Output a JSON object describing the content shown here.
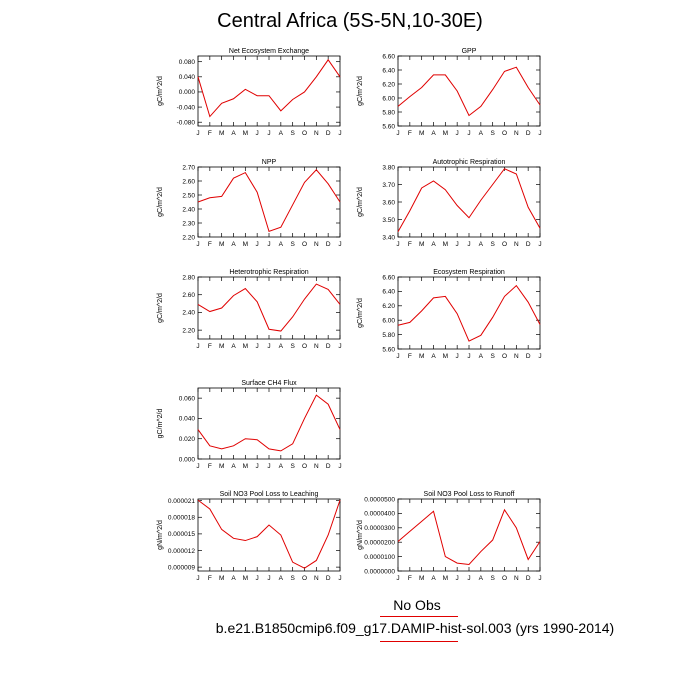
{
  "title": "Central Africa (5S-5N,10-30E)",
  "months": [
    "J",
    "F",
    "M",
    "A",
    "M",
    "J",
    "J",
    "A",
    "S",
    "O",
    "N",
    "D",
    "J"
  ],
  "legend": {
    "obs_label": "No Obs",
    "sim_label": "b.e21.B1850cmip6.f09_g17.DAMIP-hist-sol.003 (yrs 1990-2014)",
    "line_color": "#e00000"
  },
  "chart_data": [
    {
      "type": "line",
      "title": "Net Ecosystem Exchange",
      "ylabel": "gC/m^2/d",
      "ylim": [
        -0.09,
        0.095
      ],
      "yticks": [
        -0.08,
        -0.04,
        0,
        0.04,
        0.08
      ],
      "yticklabels": [
        "-0.080",
        "-0.040",
        "0.000",
        "0.040",
        "0.080"
      ],
      "x": [
        "J",
        "F",
        "M",
        "A",
        "M",
        "J",
        "J",
        "A",
        "S",
        "O",
        "N",
        "D",
        "J"
      ],
      "values": [
        0.04,
        -0.065,
        -0.03,
        -0.018,
        0.007,
        -0.01,
        -0.01,
        -0.05,
        -0.02,
        0.0,
        0.04,
        0.085,
        0.04
      ]
    },
    {
      "type": "line",
      "title": "GPP",
      "ylabel": "gC/m^2/d",
      "ylim": [
        5.6,
        6.6
      ],
      "yticks": [
        5.6,
        5.8,
        6.0,
        6.2,
        6.4,
        6.6
      ],
      "yticklabels": [
        "5.60",
        "5.80",
        "6.00",
        "6.20",
        "6.40",
        "6.60"
      ],
      "x": [
        "J",
        "F",
        "M",
        "A",
        "M",
        "J",
        "J",
        "A",
        "S",
        "O",
        "N",
        "D",
        "J"
      ],
      "values": [
        5.88,
        6.02,
        6.15,
        6.33,
        6.33,
        6.1,
        5.75,
        5.88,
        6.12,
        6.38,
        6.44,
        6.15,
        5.9
      ]
    },
    {
      "type": "line",
      "title": "NPP",
      "ylabel": "gC/m^2/d",
      "ylim": [
        2.2,
        2.7
      ],
      "yticks": [
        2.2,
        2.3,
        2.4,
        2.5,
        2.6,
        2.7
      ],
      "yticklabels": [
        "2.20",
        "2.30",
        "2.40",
        "2.50",
        "2.60",
        "2.70"
      ],
      "x": [
        "J",
        "F",
        "M",
        "A",
        "M",
        "J",
        "J",
        "A",
        "S",
        "O",
        "N",
        "D",
        "J"
      ],
      "values": [
        2.45,
        2.48,
        2.49,
        2.62,
        2.66,
        2.52,
        2.24,
        2.27,
        2.43,
        2.59,
        2.68,
        2.58,
        2.45
      ]
    },
    {
      "type": "line",
      "title": "Autotrophic Respiration",
      "ylabel": "gC/m^2/d",
      "ylim": [
        3.4,
        3.8
      ],
      "yticks": [
        3.4,
        3.5,
        3.6,
        3.7,
        3.8
      ],
      "yticklabels": [
        "3.40",
        "3.50",
        "3.60",
        "3.70",
        "3.80"
      ],
      "x": [
        "J",
        "F",
        "M",
        "A",
        "M",
        "J",
        "J",
        "A",
        "S",
        "O",
        "N",
        "D",
        "J"
      ],
      "values": [
        3.43,
        3.55,
        3.68,
        3.72,
        3.67,
        3.58,
        3.51,
        3.61,
        3.7,
        3.79,
        3.76,
        3.57,
        3.45
      ]
    },
    {
      "type": "line",
      "title": "Heterotrophic Respiration",
      "ylabel": "gC/m^2/d",
      "ylim": [
        2.1,
        2.8
      ],
      "yticks": [
        2.2,
        2.4,
        2.6,
        2.8
      ],
      "yticklabels": [
        "2.20",
        "2.40",
        "2.60",
        "2.80"
      ],
      "x": [
        "J",
        "F",
        "M",
        "A",
        "M",
        "J",
        "J",
        "A",
        "S",
        "O",
        "N",
        "D",
        "J"
      ],
      "values": [
        2.49,
        2.41,
        2.45,
        2.59,
        2.67,
        2.52,
        2.21,
        2.19,
        2.35,
        2.55,
        2.72,
        2.66,
        2.49
      ]
    },
    {
      "type": "line",
      "title": "Ecosystem Respiration",
      "ylabel": "gC/m^2/d",
      "ylim": [
        5.6,
        6.6
      ],
      "yticks": [
        5.6,
        5.8,
        6.0,
        6.2,
        6.4,
        6.6
      ],
      "yticklabels": [
        "5.60",
        "5.80",
        "6.00",
        "6.20",
        "6.40",
        "6.60"
      ],
      "x": [
        "J",
        "F",
        "M",
        "A",
        "M",
        "J",
        "J",
        "A",
        "S",
        "O",
        "N",
        "D",
        "J"
      ],
      "values": [
        5.93,
        5.97,
        6.13,
        6.31,
        6.33,
        6.09,
        5.71,
        5.79,
        6.04,
        6.33,
        6.48,
        6.25,
        5.94
      ]
    },
    {
      "type": "line",
      "title": "Surface CH4 Flux",
      "ylabel": "gC/m^2/d",
      "ylim": [
        0.0,
        0.07
      ],
      "yticks": [
        0,
        0.02,
        0.04,
        0.06
      ],
      "yticklabels": [
        "0.000",
        "0.020",
        "0.040",
        "0.060"
      ],
      "x": [
        "J",
        "F",
        "M",
        "A",
        "M",
        "J",
        "J",
        "A",
        "S",
        "O",
        "N",
        "D",
        "J"
      ],
      "values": [
        0.029,
        0.013,
        0.01,
        0.013,
        0.02,
        0.019,
        0.01,
        0.008,
        0.015,
        0.04,
        0.063,
        0.054,
        0.029
      ]
    },
    {
      "type": "line",
      "title": "Soil NO3 Pool Loss to Leaching",
      "ylabel": "gN/m^2/d",
      "ylim": [
        8.3e-06,
        2.13e-05
      ],
      "yticks": [
        9e-06,
        1.2e-05,
        1.5e-05,
        1.8e-05,
        2.1e-05
      ],
      "yticklabels": [
        "0.000009",
        "0.000012",
        "0.000015",
        "0.000018",
        "0.000021"
      ],
      "x": [
        "J",
        "F",
        "M",
        "A",
        "M",
        "J",
        "J",
        "A",
        "S",
        "O",
        "N",
        "D",
        "J"
      ],
      "values": [
        2.11e-05,
        1.95e-05,
        1.58e-05,
        1.42e-05,
        1.38e-05,
        1.45e-05,
        1.66e-05,
        1.48e-05,
        9.9e-06,
        8.8e-06,
        1.02e-05,
        1.48e-05,
        2.11e-05
      ]
    },
    {
      "type": "line",
      "title": "Soil NO3 Pool Loss to Runoff",
      "ylabel": "gN/m^2/d",
      "ylim": [
        0.0,
        5e-05
      ],
      "yticks": [
        0,
        1e-05,
        2e-05,
        3e-05,
        4e-05,
        5e-05
      ],
      "yticklabels": [
        "0.0000000",
        "0.0000100",
        "0.0000200",
        "0.0000300",
        "0.0000400",
        "0.0000500"
      ],
      "x": [
        "J",
        "F",
        "M",
        "A",
        "M",
        "J",
        "J",
        "A",
        "S",
        "O",
        "N",
        "D",
        "J"
      ],
      "values": [
        2.05e-05,
        2.75e-05,
        3.45e-05,
        4.15e-05,
        1e-05,
        5.5e-06,
        4.5e-06,
        1.35e-05,
        2.15e-05,
        4.25e-05,
        3e-05,
        8e-06,
        2.05e-05
      ]
    }
  ]
}
